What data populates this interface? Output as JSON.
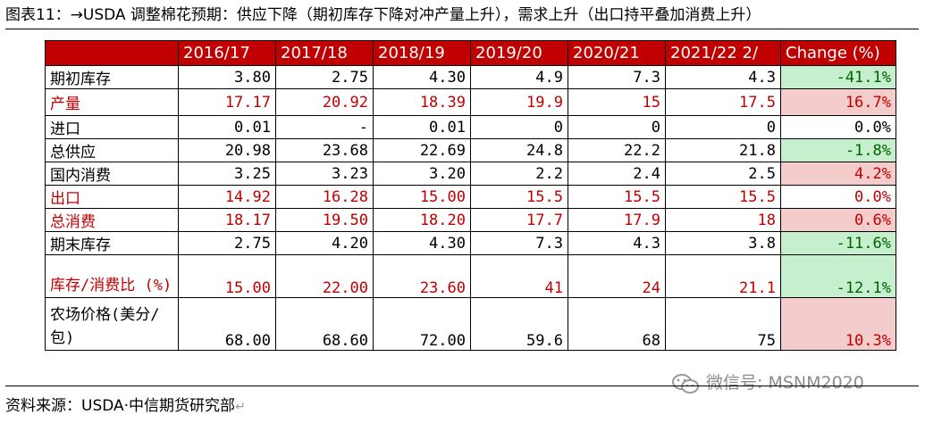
{
  "caption": "图表11：→USDA 调整棉花预期：供应下降（期初库存下降对冲产量上升），需求上升（出口持平叠加消费上升）",
  "table": {
    "headers": [
      "2016/17",
      "2017/18",
      "2018/19",
      "2019/20",
      "2020/21",
      "2021/22 2/",
      "Change (%)"
    ],
    "rows": [
      {
        "label": "期初库存",
        "values": [
          "3.80",
          "2.75",
          "4.30",
          "4.9",
          "7.3",
          "4.3"
        ],
        "change": "-41.1%",
        "change_sign": "neg",
        "highlight": false
      },
      {
        "label": "产量",
        "values": [
          "17.17",
          "20.92",
          "18.39",
          "19.9",
          "15",
          "17.5"
        ],
        "change": "16.7%",
        "change_sign": "pos",
        "highlight": true
      },
      {
        "label": "进口",
        "values": [
          "0.01",
          "-",
          "0.01",
          "0",
          "0",
          "0"
        ],
        "change": "0.0%",
        "change_sign": "none",
        "highlight": false
      },
      {
        "label": "总供应",
        "values": [
          "20.98",
          "23.68",
          "22.69",
          "24.8",
          "22.2",
          "21.8"
        ],
        "change": "-1.8%",
        "change_sign": "neg",
        "highlight": false
      },
      {
        "label": "国内消费",
        "values": [
          "3.25",
          "3.23",
          "3.20",
          "2.2",
          "2.4",
          "2.5"
        ],
        "change": "4.2%",
        "change_sign": "pos",
        "highlight": false
      },
      {
        "label": "出口",
        "values": [
          "14.92",
          "16.28",
          "15.00",
          "15.5",
          "15.5",
          "15.5"
        ],
        "change": "0.0%",
        "change_sign": "none",
        "highlight": true
      },
      {
        "label": "总消费",
        "values": [
          "18.17",
          "19.50",
          "18.20",
          "17.7",
          "17.9",
          "18"
        ],
        "change": "0.6%",
        "change_sign": "pos",
        "highlight": true
      },
      {
        "label": "期末库存",
        "values": [
          "2.75",
          "4.20",
          "4.30",
          "7.3",
          "4.3",
          "3.8"
        ],
        "change": "-11.6%",
        "change_sign": "neg",
        "highlight": false
      },
      {
        "label": "库存/消费比 (%)",
        "values": [
          "15.00",
          "22.00",
          "23.60",
          "41",
          "24",
          "21.1"
        ],
        "change": "-12.1%",
        "change_sign": "neg",
        "highlight": true
      },
      {
        "label": "农场价格(美分/ 包)",
        "values": [
          "68.00",
          "68.60",
          "72.00",
          "59.6",
          "68",
          "75"
        ],
        "change": "10.3%",
        "change_sign": "pos",
        "highlight": false
      }
    ]
  },
  "watermark": {
    "text": "微信号: MSNM2020",
    "icon": "wechat-icon"
  },
  "source": "资料来源：USDA·中信期货研究部"
}
